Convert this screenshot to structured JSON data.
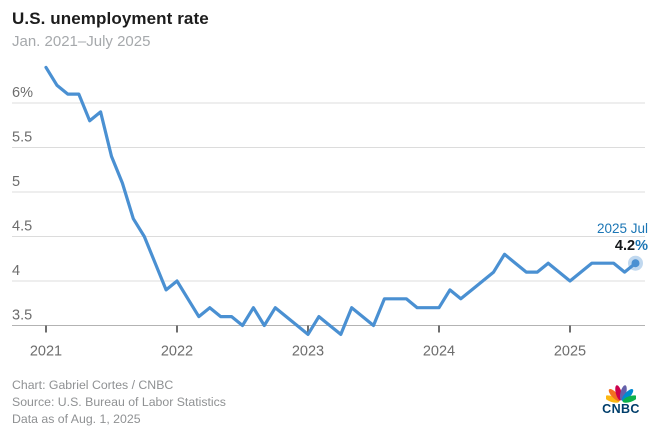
{
  "header": {
    "title": "U.S. unemployment rate",
    "subtitle": "Jan. 2021–July 2025"
  },
  "chart_data": {
    "type": "line",
    "title": "U.S. unemployment rate",
    "subtitle": "Jan. 2021–July 2025",
    "unit": "%",
    "x_range": {
      "start": "Jan 2021",
      "end": "Jul 2025",
      "frequency": "monthly"
    },
    "x_tick_labels": [
      "2021",
      "2022",
      "2023",
      "2024",
      "2025"
    ],
    "y_tick_labels": [
      "6%",
      "5.5",
      "5",
      "4.5",
      "4",
      "3.5"
    ],
    "y_tick_values": [
      6,
      5.5,
      5,
      4.5,
      4,
      3.5
    ],
    "ylim": [
      3.3,
      6.5
    ],
    "grid": "horizontal",
    "values": [
      6.4,
      6.2,
      6.1,
      6.1,
      5.8,
      5.9,
      5.4,
      5.1,
      4.7,
      4.5,
      4.2,
      3.9,
      4.0,
      3.8,
      3.6,
      3.7,
      3.6,
      3.6,
      3.5,
      3.7,
      3.5,
      3.7,
      3.6,
      3.5,
      3.4,
      3.6,
      3.5,
      3.4,
      3.7,
      3.6,
      3.5,
      3.8,
      3.8,
      3.8,
      3.7,
      3.7,
      3.7,
      3.9,
      3.8,
      3.9,
      4.0,
      4.1,
      4.3,
      4.2,
      4.1,
      4.1,
      4.2,
      4.1,
      4.0,
      4.1,
      4.2,
      4.2,
      4.2,
      4.1,
      4.2
    ],
    "line_color": "#4a90d2",
    "end_marker": true,
    "annotation": {
      "label": "2025 Jul",
      "value": "4.2",
      "unit": "%",
      "label_color": "#1b76b5",
      "value_color": "#15181b"
    }
  },
  "footer": {
    "credit": "Chart: Gabriel Cortes / CNBC",
    "source": "Source: U.S. Bureau of Labor Statistics",
    "as_of": "Data as of Aug. 1, 2025"
  },
  "logo": {
    "text": "CNBC",
    "text_color": "#003e6b",
    "peacock_colors": [
      "#FCB711",
      "#F37021",
      "#CC004C",
      "#6460AA",
      "#0089D0",
      "#0DB14B"
    ]
  }
}
